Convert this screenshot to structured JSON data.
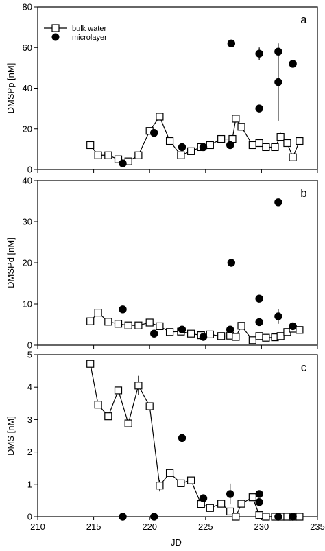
{
  "chart_data": [
    {
      "type": "scatter",
      "panel_label": "a",
      "ylabel": "DMSPp [nM]",
      "xlabel": "",
      "xlim": [
        210,
        235
      ],
      "ylim": [
        0,
        80
      ],
      "yticks": [
        0,
        20,
        40,
        60,
        80
      ],
      "xticks": [
        210,
        215,
        220,
        225,
        230,
        235
      ],
      "x_tick_labels": [],
      "y_tick_labels": [
        "0",
        "20",
        "40",
        "60",
        "80"
      ],
      "legend": {
        "placement": "top-left",
        "entries": [
          {
            "series": "bulk water",
            "marker": "open-square",
            "line": true
          },
          {
            "series": "microlayer",
            "marker": "filled-circle",
            "line": false
          }
        ]
      },
      "series": [
        {
          "name": "bulk water",
          "style": "line-open-square",
          "x": [
            214.7,
            215.4,
            216.3,
            217.2,
            218.1,
            219.0,
            220.0,
            220.9,
            221.8,
            222.8,
            223.7,
            224.6,
            225.4,
            226.4,
            227.4,
            227.7,
            228.2,
            229.2,
            229.8,
            230.4,
            231.2,
            231.7,
            232.3,
            232.8,
            233.4
          ],
          "y": [
            12,
            7,
            7,
            5,
            4,
            7,
            19,
            26,
            14,
            7,
            9,
            11,
            12,
            15,
            15,
            25,
            21,
            12,
            13,
            11,
            11,
            16,
            13,
            6,
            14
          ],
          "yerr": [
            0,
            0,
            0,
            0,
            0,
            0,
            0,
            0,
            0,
            0,
            0,
            0,
            0,
            0,
            0,
            0,
            0,
            0,
            0,
            0,
            0,
            2,
            0,
            0,
            0
          ]
        },
        {
          "name": "microlayer",
          "style": "filled-circle",
          "x": [
            217.6,
            220.4,
            222.9,
            224.8,
            227.2,
            227.3,
            229.8,
            229.8,
            231.5,
            231.5,
            232.8
          ],
          "y": [
            3,
            18,
            11,
            11,
            12,
            62,
            57,
            30,
            58,
            43,
            52
          ],
          "yerr": [
            0,
            0,
            0,
            0,
            0,
            0,
            3,
            0,
            4,
            19,
            0
          ]
        }
      ]
    },
    {
      "type": "scatter",
      "panel_label": "b",
      "ylabel": "DMSPd [nM]",
      "xlabel": "",
      "xlim": [
        210,
        235
      ],
      "ylim": [
        0,
        40
      ],
      "yticks": [
        0,
        10,
        20,
        30,
        40
      ],
      "xticks": [
        210,
        215,
        220,
        225,
        230,
        235
      ],
      "x_tick_labels": [],
      "y_tick_labels": [
        "0",
        "10",
        "20",
        "30",
        "40"
      ],
      "legend": null,
      "series": [
        {
          "name": "bulk water",
          "style": "line-open-square",
          "x": [
            214.7,
            215.4,
            216.3,
            217.2,
            218.1,
            219.0,
            220.0,
            220.9,
            221.8,
            222.8,
            223.7,
            224.6,
            225.4,
            226.4,
            227.2,
            227.7,
            228.2,
            229.2,
            229.8,
            230.4,
            231.2,
            231.7,
            232.3,
            232.8,
            233.4
          ],
          "y": [
            5.8,
            7.9,
            5.7,
            5.2,
            4.8,
            4.8,
            5.5,
            4.6,
            3.2,
            3.3,
            2.8,
            2.4,
            2.6,
            2.2,
            2.3,
            2.0,
            4.7,
            1.2,
            2.2,
            1.8,
            1.9,
            2.2,
            3.2,
            4.0,
            3.7
          ],
          "yerr": [
            0,
            0,
            0,
            0,
            0,
            0,
            0,
            0,
            0,
            0,
            0,
            0,
            0,
            0,
            0,
            0,
            0,
            0,
            0,
            0,
            0,
            0,
            0,
            0,
            0
          ]
        },
        {
          "name": "microlayer",
          "style": "filled-circle",
          "x": [
            217.6,
            220.4,
            222.9,
            224.8,
            227.2,
            227.3,
            229.8,
            229.8,
            231.5,
            231.5,
            232.8
          ],
          "y": [
            8.7,
            2.8,
            3.8,
            2.0,
            3.8,
            20.0,
            11.3,
            5.6,
            34.7,
            7.0,
            4.6
          ],
          "yerr": [
            0,
            0,
            0,
            0,
            0,
            0,
            0,
            0,
            0,
            1.8,
            0
          ]
        }
      ]
    },
    {
      "type": "scatter",
      "panel_label": "c",
      "ylabel": "DMS [nM]",
      "xlabel": "JD",
      "xlim": [
        210,
        235
      ],
      "ylim": [
        0,
        5
      ],
      "yticks": [
        0,
        1,
        2,
        3,
        4,
        5
      ],
      "xticks": [
        210,
        215,
        220,
        225,
        230,
        235
      ],
      "x_tick_labels": [
        "210",
        "215",
        "220",
        "225",
        "230",
        "235"
      ],
      "y_tick_labels": [
        "0",
        "1",
        "2",
        "3",
        "4",
        "5"
      ],
      "legend": null,
      "series": [
        {
          "name": "bulk water",
          "style": "line-open-square",
          "x": [
            214.7,
            215.4,
            216.3,
            217.2,
            218.1,
            219.0,
            220.0,
            220.9,
            221.8,
            222.8,
            223.7,
            224.6,
            225.4,
            226.4,
            227.2,
            227.7,
            228.2,
            229.2,
            229.8,
            230.4,
            231.2,
            231.7,
            232.3,
            232.8,
            233.4
          ],
          "y": [
            4.72,
            3.46,
            3.1,
            3.9,
            2.88,
            4.05,
            3.41,
            0.96,
            1.35,
            1.03,
            1.12,
            0.39,
            0.27,
            0.4,
            0.16,
            0.0,
            0.4,
            0.6,
            0.05,
            0.0,
            0.0,
            0.0,
            0.0,
            0.0,
            0.0
          ],
          "yerr": [
            0,
            0,
            0,
            0,
            0,
            0.3,
            0,
            0.18,
            0,
            0,
            0,
            0,
            0,
            0,
            0,
            0,
            0,
            0,
            0,
            0,
            0,
            0,
            0,
            0,
            0
          ]
        },
        {
          "name": "microlayer",
          "style": "filled-circle",
          "x": [
            217.6,
            220.4,
            222.9,
            224.8,
            227.2,
            229.8,
            229.8,
            231.5,
            232.8
          ],
          "y": [
            0.0,
            0.0,
            2.43,
            0.57,
            0.7,
            0.7,
            0.45,
            0.0,
            0.0
          ],
          "yerr": [
            0,
            0,
            0,
            0,
            0.32,
            0,
            0,
            0,
            0
          ]
        }
      ]
    }
  ]
}
